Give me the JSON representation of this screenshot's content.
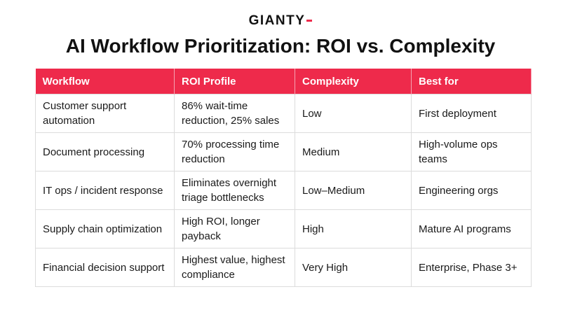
{
  "header": {
    "logo": "GIANTY",
    "title": "AI Workflow Prioritization: ROI vs. Complexity"
  },
  "table": {
    "columns": [
      "Workflow",
      "ROI Profile",
      "Complexity",
      "Best for"
    ],
    "rows": [
      [
        "Customer support automation",
        "86% wait-time reduction, 25% sales",
        "Low",
        "First deployment"
      ],
      [
        "Document processing",
        "70% processing time reduction",
        "Medium",
        "High-volume ops teams"
      ],
      [
        "IT ops / incident response",
        "Eliminates overnight triage bottlenecks",
        "Low–Medium",
        "Engineering orgs"
      ],
      [
        "Supply chain optimization",
        "High ROI, longer payback",
        "High",
        "Mature AI programs"
      ],
      [
        "Financial decision support",
        "Highest value, highest compliance",
        "Very High",
        "Enterprise, Phase 3+"
      ]
    ]
  }
}
